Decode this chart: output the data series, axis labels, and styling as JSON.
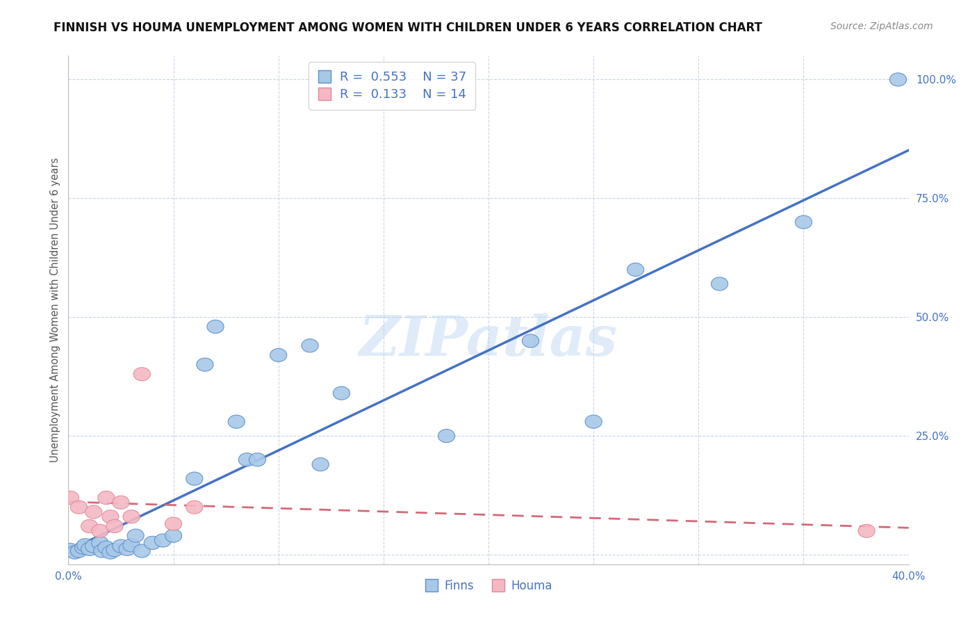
{
  "title": "FINNISH VS HOUMA UNEMPLOYMENT AMONG WOMEN WITH CHILDREN UNDER 6 YEARS CORRELATION CHART",
  "source": "Source: ZipAtlas.com",
  "ylabel": "Unemployment Among Women with Children Under 6 years",
  "xlim": [
    0.0,
    0.4
  ],
  "ylim": [
    -0.02,
    1.05
  ],
  "yticks": [
    0.0,
    0.25,
    0.5,
    0.75,
    1.0
  ],
  "ytick_labels": [
    "",
    "25.0%",
    "50.0%",
    "75.0%",
    "100.0%"
  ],
  "xticks": [
    0.0,
    0.05,
    0.1,
    0.15,
    0.2,
    0.25,
    0.3,
    0.35,
    0.4
  ],
  "xtick_labels": [
    "0.0%",
    "",
    "",
    "",
    "",
    "",
    "",
    "",
    "40.0%"
  ],
  "finns_R": 0.553,
  "finns_N": 37,
  "houma_R": 0.133,
  "houma_N": 14,
  "finns_color": "#a8c8e8",
  "finns_edge_color": "#5a8fc8",
  "finns_line_color": "#4472c4",
  "houma_color": "#f4b8c4",
  "houma_edge_color": "#e08898",
  "houma_line_color": "#d46878",
  "tick_color": "#4472c4",
  "background_color": "#ffffff",
  "grid_color": "#c8d4e8",
  "watermark": "ZIPatlas",
  "finns_x": [
    0.001,
    0.003,
    0.005,
    0.007,
    0.008,
    0.01,
    0.012,
    0.015,
    0.016,
    0.018,
    0.02,
    0.022,
    0.025,
    0.028,
    0.03,
    0.032,
    0.035,
    0.04,
    0.045,
    0.05,
    0.06,
    0.065,
    0.07,
    0.08,
    0.085,
    0.09,
    0.1,
    0.115,
    0.12,
    0.13,
    0.18,
    0.22,
    0.25,
    0.27,
    0.31,
    0.35,
    0.395
  ],
  "finns_y": [
    0.01,
    0.005,
    0.008,
    0.015,
    0.02,
    0.012,
    0.018,
    0.025,
    0.008,
    0.015,
    0.005,
    0.01,
    0.018,
    0.012,
    0.02,
    0.04,
    0.008,
    0.025,
    0.03,
    0.04,
    0.16,
    0.4,
    0.48,
    0.28,
    0.2,
    0.2,
    0.42,
    0.44,
    0.19,
    0.34,
    0.25,
    0.45,
    0.28,
    0.6,
    0.57,
    0.7,
    1.0
  ],
  "houma_x": [
    0.001,
    0.005,
    0.01,
    0.012,
    0.015,
    0.018,
    0.02,
    0.022,
    0.025,
    0.03,
    0.035,
    0.05,
    0.06,
    0.38
  ],
  "houma_y": [
    0.12,
    0.1,
    0.06,
    0.09,
    0.05,
    0.12,
    0.08,
    0.06,
    0.11,
    0.08,
    0.38,
    0.065,
    0.1,
    0.05
  ]
}
